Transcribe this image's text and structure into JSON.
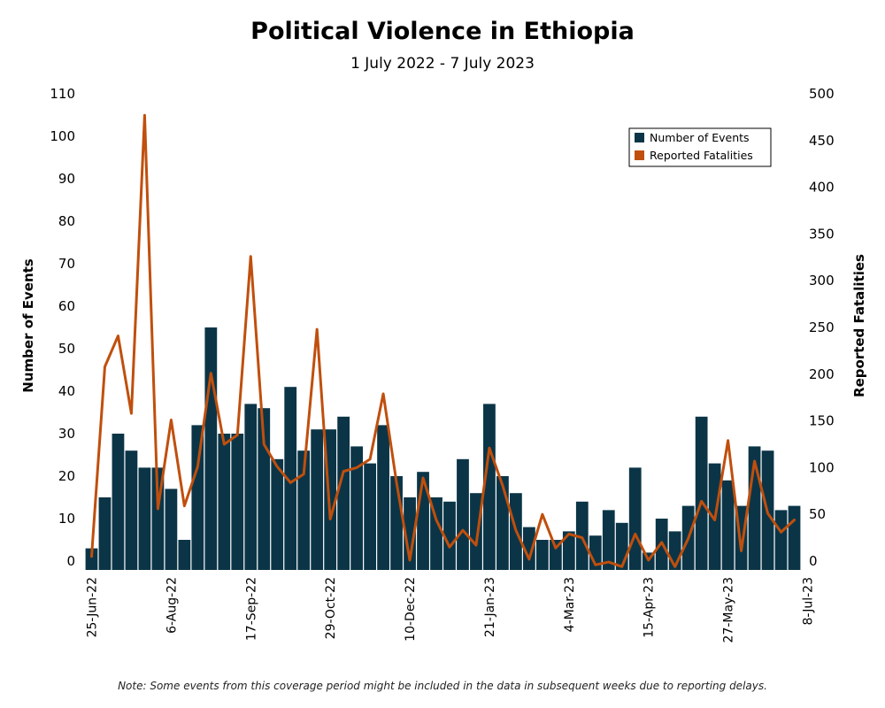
{
  "chart_data": {
    "type": "bar",
    "title": "Political Violence in Ethiopia",
    "subtitle": "1 July 2022 - 7 July 2023",
    "note": "Note: Some events from this coverage period might be included in the data in subsequent weeks due to reporting delays.",
    "ylabel_left": "Number of Events",
    "ylabel_right": "Reported Fatalities",
    "ylim_left": [
      0,
      110
    ],
    "ylim_right": [
      0,
      500
    ],
    "yticks_left": [
      0,
      10,
      20,
      30,
      40,
      50,
      60,
      70,
      80,
      90,
      100,
      110
    ],
    "yticks_right": [
      0,
      50,
      100,
      150,
      200,
      250,
      300,
      350,
      400,
      450,
      500
    ],
    "x_tick_labels": [
      {
        "label": "25-Jun-22",
        "index": 0
      },
      {
        "label": "6-Aug-22",
        "index": 6
      },
      {
        "label": "17-Sep-22",
        "index": 12
      },
      {
        "label": "29-Oct-22",
        "index": 18
      },
      {
        "label": "10-Dec-22",
        "index": 24
      },
      {
        "label": "21-Jan-23",
        "index": 30
      },
      {
        "label": "4-Mar-23",
        "index": 36
      },
      {
        "label": "15-Apr-23",
        "index": 42
      },
      {
        "label": "27-May-23",
        "index": 48
      },
      {
        "label": "8-Jul-23",
        "index": 54
      }
    ],
    "legend": {
      "placement": "top-right",
      "entries": [
        {
          "label": "Number of Events",
          "color": "#0b3547"
        },
        {
          "label": "Reported Fatalities",
          "color": "#c04f0d"
        }
      ]
    },
    "series": [
      {
        "name": "Number of Events",
        "type": "bar",
        "axis": "left",
        "color": "#0b3547",
        "values": [
          3,
          15,
          30,
          26,
          22,
          22,
          17,
          5,
          32,
          55,
          30,
          30,
          37,
          36,
          24,
          41,
          26,
          31,
          31,
          34,
          27,
          23,
          32,
          20,
          15,
          21,
          15,
          14,
          24,
          16,
          37,
          20,
          16,
          8,
          5,
          5,
          7,
          14,
          6,
          12,
          9,
          22,
          2,
          10,
          7,
          13,
          34,
          23,
          19,
          13,
          27,
          26,
          12,
          13
        ]
      },
      {
        "name": "Reported Fatalities",
        "type": "line",
        "axis": "right",
        "color": "#c04f0d",
        "values": [
          5,
          208,
          241,
          158,
          477,
          56,
          151,
          59,
          101,
          201,
          125,
          135,
          326,
          125,
          101,
          84,
          93,
          248,
          45,
          96,
          100,
          109,
          179,
          84,
          1,
          89,
          44,
          15,
          33,
          17,
          121,
          81,
          33,
          2,
          50,
          14,
          29,
          25,
          -4,
          -1,
          -6,
          29,
          1,
          20,
          -6,
          24,
          64,
          44,
          129,
          11,
          107,
          51,
          31,
          44
        ]
      }
    ]
  }
}
